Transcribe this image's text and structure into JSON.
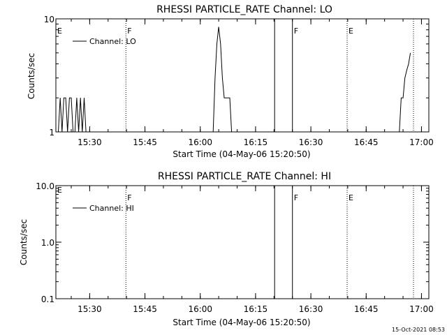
{
  "chart_data": [
    {
      "type": "line",
      "title": "RHESSI PARTICLE_RATE Channel: LO",
      "xlabel": "Start Time (04-May-06 15:20:50)",
      "ylabel": "Counts/sec",
      "xlim": [
        "15:20:50",
        "17:02:00"
      ],
      "ylim": [
        1,
        10
      ],
      "yscale": "log",
      "x_ticks": [
        "15:30",
        "15:45",
        "16:00",
        "16:15",
        "16:30",
        "16:45",
        "17:00"
      ],
      "y_ticks": [
        "1",
        "10"
      ],
      "legend": {
        "label": "Channel: LO",
        "placement": "top-left"
      },
      "grid": false,
      "series": [
        {
          "name": "Channel: LO",
          "x": [
            "15:21:30",
            "15:22:00",
            "15:22:30",
            "15:23:00",
            "15:23:30",
            "15:24:00",
            "15:24:30",
            "15:25:00",
            "15:25:30",
            "15:26:00",
            "15:26:30",
            "15:27:00",
            "15:27:30",
            "15:28:00",
            "15:28:30",
            "15:29:00",
            "15:29:30",
            "16:03:30",
            "16:04:00",
            "16:04:30",
            "16:05:00",
            "16:05:30",
            "16:06:00",
            "16:06:30",
            "16:07:00",
            "16:07:30",
            "16:08:00",
            "16:08:30",
            "16:09:00",
            "16:54:00",
            "16:54:30",
            "16:55:00",
            "16:55:30",
            "16:56:00",
            "16:56:30",
            "16:57:00"
          ],
          "values": [
            1,
            2,
            1,
            2,
            2,
            1,
            2,
            2,
            1,
            1,
            2,
            1,
            2,
            1,
            2,
            1,
            1,
            1,
            3,
            6,
            8.5,
            6,
            3,
            2,
            2,
            2,
            2,
            1,
            1,
            1,
            2,
            2,
            3,
            3.5,
            4,
            5
          ]
        }
      ],
      "markers": [
        {
          "time": "15:39:50",
          "style": "dotted",
          "label": "F"
        },
        {
          "time": "16:20:10",
          "style": "solid",
          "label": ""
        },
        {
          "time": "16:25:00",
          "style": "solid",
          "label": "F"
        },
        {
          "time": "16:39:50",
          "style": "dotted",
          "label": "E"
        },
        {
          "time": "16:57:50",
          "style": "dotted",
          "label": ""
        }
      ],
      "corner_label": "E"
    },
    {
      "type": "line",
      "title": "RHESSI PARTICLE_RATE Channel: HI",
      "xlabel": "Start Time (04-May-06 15:20:50)",
      "ylabel": "Counts/sec",
      "xlim": [
        "15:20:50",
        "17:02:00"
      ],
      "ylim": [
        0.1,
        10
      ],
      "yscale": "log",
      "x_ticks": [
        "15:30",
        "15:45",
        "16:00",
        "16:15",
        "16:30",
        "16:45",
        "17:00"
      ],
      "y_ticks": [
        "0.1",
        "1.0",
        "10.0"
      ],
      "legend": {
        "label": "Channel: HI",
        "placement": "top-left"
      },
      "grid": false,
      "series": [
        {
          "name": "Channel: HI",
          "x": [],
          "values": []
        }
      ],
      "markers": [
        {
          "time": "15:39:50",
          "style": "dotted",
          "label": "F"
        },
        {
          "time": "16:20:10",
          "style": "solid",
          "label": ""
        },
        {
          "time": "16:25:00",
          "style": "solid",
          "label": "F"
        },
        {
          "time": "16:39:50",
          "style": "dotted",
          "label": "E"
        },
        {
          "time": "16:57:50",
          "style": "dotted",
          "label": ""
        }
      ],
      "corner_label": "E"
    }
  ],
  "footer": {
    "timestamp": "15-Oct-2021 08:53"
  },
  "colors": {
    "background": "#ffffff",
    "foreground": "#000000"
  }
}
